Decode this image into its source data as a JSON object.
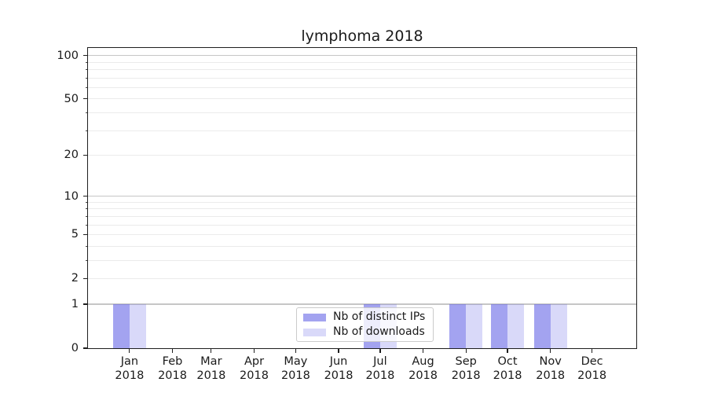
{
  "chart_data": {
    "type": "bar",
    "title": "lymphoma 2018",
    "categories": [
      "Jan",
      "Feb",
      "Mar",
      "Apr",
      "May",
      "Jun",
      "Jul",
      "Aug",
      "Sep",
      "Oct",
      "Nov",
      "Dec"
    ],
    "category_year": "2018",
    "series": [
      {
        "name": "Nb of distinct IPs",
        "color": "#6666e6",
        "alpha": 0.6,
        "values": [
          1,
          0,
          0,
          0,
          0,
          0,
          1,
          0,
          1,
          1,
          1,
          0
        ]
      },
      {
        "name": "Nb of downloads",
        "color": "#6666e6",
        "alpha": 0.25,
        "values": [
          1,
          0,
          0,
          0,
          0,
          0,
          1,
          0,
          1,
          1,
          1,
          0
        ]
      }
    ],
    "yscale": "log1p",
    "ylim": [
      0,
      113
    ],
    "yticks": [
      0,
      1,
      2,
      5,
      10,
      20,
      50,
      100
    ],
    "major_gridlines": [
      1,
      10,
      100
    ],
    "minor_gridlines": [
      2,
      3,
      4,
      5,
      6,
      7,
      8,
      9,
      20,
      30,
      40,
      50,
      60,
      70,
      80,
      90
    ],
    "grid_color_major": "#c6c6c6",
    "grid_color_minor": "#ebebeb",
    "axis_color": "#1f1f1f",
    "legend": {
      "position": "lower center",
      "entries": [
        "Nb of distinct IPs",
        "Nb of downloads"
      ]
    },
    "xaxis": {
      "kind": "time",
      "grid": false
    },
    "yaxis": {
      "grid": true,
      "grid_which": "both"
    }
  }
}
